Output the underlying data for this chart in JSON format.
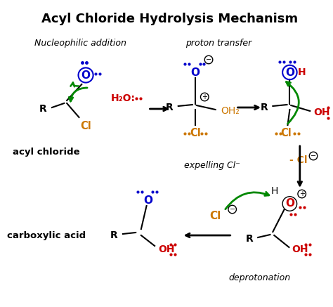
{
  "title": "Acyl Chloride Hydrolysis Mechanism",
  "bg_color": "#ffffff",
  "black": "#000000",
  "red": "#cc0000",
  "orange": "#cc7700",
  "blue": "#0000cc",
  "green": "#008800",
  "label_nucleophilic": "Nucleophilic addition",
  "label_proton": "proton transfer",
  "label_expelling": "expelling Cl⁻",
  "label_deprotonation": "deprotonation",
  "label_acyl": "acyl chloride",
  "label_carboxylic": "carboxylic acid",
  "figw": 4.74,
  "figh": 4.37,
  "dpi": 100
}
